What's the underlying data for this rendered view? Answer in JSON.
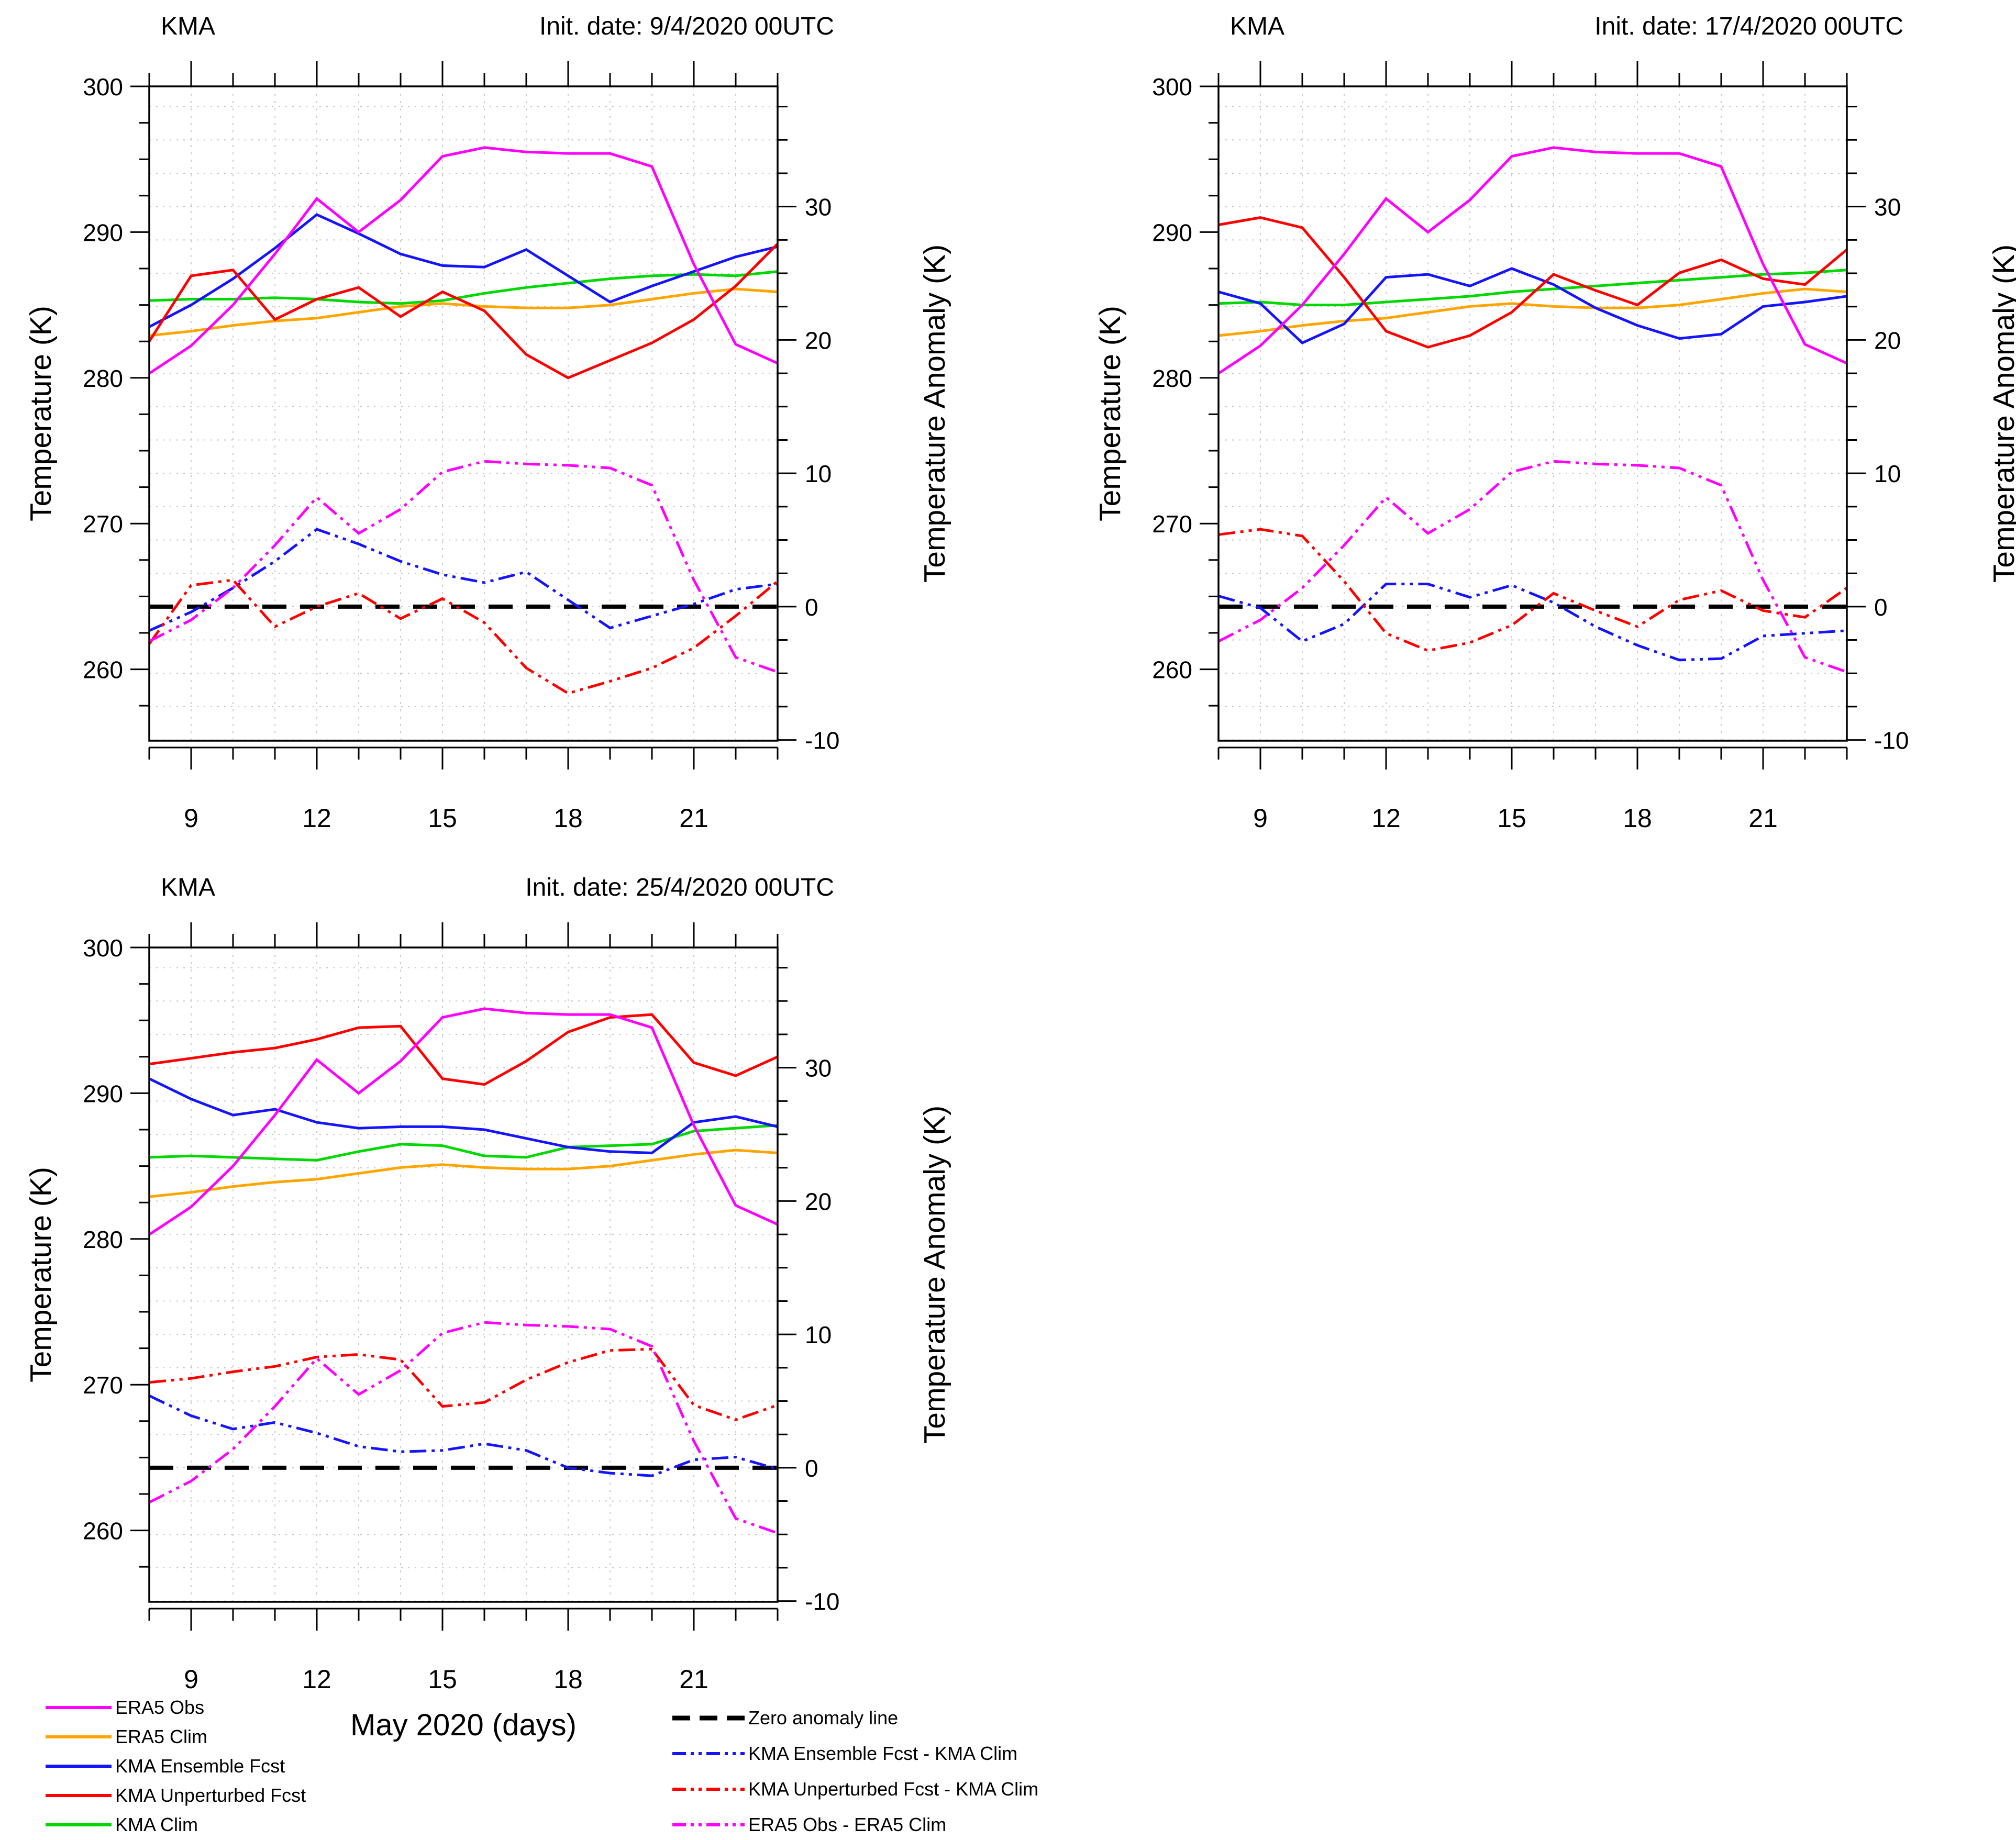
{
  "chart_data": [
    {
      "type": "line",
      "title": "KMA",
      "subtitle": "Init. date: 9/4/2020 00UTC",
      "xlabel": "",
      "ylabel_left": "Temperature (K)",
      "ylabel_right": "Temperature Anomaly (K)",
      "x_days": [
        8,
        9,
        10,
        11,
        12,
        13,
        14,
        15,
        16,
        17,
        18,
        19,
        20,
        21,
        22,
        23
      ],
      "xticks": [
        9,
        12,
        15,
        18,
        21
      ],
      "ylim_left": [
        255.1,
        300
      ],
      "yticks_left": [
        300,
        290,
        280,
        270,
        260
      ],
      "yticks_right": [
        30,
        20,
        10,
        0,
        -10
      ],
      "right_axis": {
        "zero_at_temp": 264.3,
        "kelvin_per_unit": 0.915
      },
      "grid": {
        "h_step_anomaly": 2.5,
        "v_step_days": 1,
        "grid_on": true
      },
      "series": [
        {
          "name": "ERA5 Clim",
          "axis": "left",
          "color": "#ffa500",
          "style": "solid",
          "values": [
            282.9,
            283.2,
            283.6,
            283.9,
            284.1,
            284.5,
            284.9,
            285.1,
            284.9,
            284.8,
            284.8,
            285.0,
            285.4,
            285.8,
            286.1,
            285.9
          ]
        },
        {
          "name": "KMA Clim",
          "axis": "left",
          "color": "#00d800",
          "style": "solid",
          "values": [
            285.3,
            285.4,
            285.4,
            285.5,
            285.4,
            285.2,
            285.1,
            285.3,
            285.8,
            286.2,
            286.5,
            286.8,
            287.0,
            287.1,
            287.0,
            287.3
          ]
        },
        {
          "name": "KMA Ensemble Fcst",
          "axis": "left",
          "color": "#1414ff",
          "style": "solid",
          "values": [
            283.5,
            285.0,
            286.8,
            288.9,
            291.2,
            289.9,
            288.5,
            287.7,
            287.6,
            288.8,
            287.0,
            285.2,
            286.3,
            287.3,
            288.3,
            289.0
          ]
        },
        {
          "name": "KMA Unperturbed Fcst",
          "axis": "left",
          "color": "#ff0000",
          "style": "solid",
          "values": [
            282.5,
            287.0,
            287.4,
            284.0,
            285.4,
            286.2,
            284.2,
            285.9,
            284.6,
            281.6,
            280.0,
            281.2,
            282.4,
            284.0,
            286.3,
            289.2
          ]
        },
        {
          "name": "ERA5 Obs",
          "axis": "left",
          "color": "#ff00ff",
          "style": "solid",
          "values": [
            280.3,
            282.2,
            285.0,
            288.5,
            292.3,
            290.0,
            292.2,
            295.2,
            295.8,
            295.5,
            295.4,
            295.4,
            294.5,
            287.8,
            282.3,
            281.0
          ]
        },
        {
          "name": "Zero anomaly line",
          "axis": "right",
          "color": "#000000",
          "style": "zero-dash",
          "values": [
            0,
            0,
            0,
            0,
            0,
            0,
            0,
            0,
            0,
            0,
            0,
            0,
            0,
            0,
            0,
            0
          ]
        },
        {
          "name": "KMA Ensemble Fcst - KMA Clim",
          "axis": "right",
          "color": "#1414ff",
          "style": "dash-dot-dot",
          "values": [
            -1.8,
            -0.4,
            1.4,
            3.4,
            5.8,
            4.7,
            3.4,
            2.4,
            1.8,
            2.6,
            0.5,
            -1.6,
            -0.7,
            0.2,
            1.3,
            1.7
          ]
        },
        {
          "name": "KMA Unperturbed Fcst - KMA Clim",
          "axis": "right",
          "color": "#ff0000",
          "style": "dash-dot-dot",
          "values": [
            -2.8,
            1.6,
            2.0,
            -1.5,
            0.0,
            1.0,
            -0.9,
            0.6,
            -1.2,
            -4.6,
            -6.5,
            -5.6,
            -4.6,
            -3.1,
            -0.7,
            1.9
          ]
        },
        {
          "name": "ERA5 Obs - ERA5 Clim",
          "axis": "right",
          "color": "#ff00ff",
          "style": "dash-dot-dot",
          "values": [
            -2.6,
            -1.0,
            1.4,
            4.6,
            8.2,
            5.5,
            7.3,
            10.1,
            10.9,
            10.7,
            10.6,
            10.4,
            9.1,
            2.0,
            -3.8,
            -4.9
          ]
        }
      ]
    },
    {
      "type": "line",
      "title": "KMA",
      "subtitle": "Init. date: 17/4/2020 00UTC",
      "xlabel": "",
      "ylabel_left": "Temperature (K)",
      "ylabel_right": "Temperature Anomaly (K)",
      "x_days": [
        8,
        9,
        10,
        11,
        12,
        13,
        14,
        15,
        16,
        17,
        18,
        19,
        20,
        21,
        22,
        23
      ],
      "xticks": [
        9,
        12,
        15,
        18,
        21
      ],
      "ylim_left": [
        255.1,
        300
      ],
      "yticks_left": [
        300,
        290,
        280,
        270,
        260
      ],
      "yticks_right": [
        30,
        20,
        10,
        0,
        -10
      ],
      "right_axis": {
        "zero_at_temp": 264.3,
        "kelvin_per_unit": 0.915
      },
      "grid": {
        "h_step_anomaly": 2.5,
        "v_step_days": 1,
        "grid_on": true
      },
      "series": [
        {
          "name": "ERA5 Clim",
          "axis": "left",
          "color": "#ffa500",
          "style": "solid",
          "values": [
            282.9,
            283.2,
            283.6,
            283.9,
            284.1,
            284.5,
            284.9,
            285.1,
            284.9,
            284.8,
            284.8,
            285.0,
            285.4,
            285.8,
            286.1,
            285.9
          ]
        },
        {
          "name": "KMA Clim",
          "axis": "left",
          "color": "#00d800",
          "style": "solid",
          "values": [
            285.1,
            285.2,
            285.0,
            285.0,
            285.2,
            285.4,
            285.6,
            285.9,
            286.1,
            286.3,
            286.5,
            286.7,
            286.9,
            287.1,
            287.2,
            287.4
          ]
        },
        {
          "name": "KMA Ensemble Fcst",
          "axis": "left",
          "color": "#1414ff",
          "style": "solid",
          "values": [
            285.9,
            285.1,
            282.4,
            283.7,
            286.9,
            287.1,
            286.3,
            287.5,
            286.4,
            284.8,
            283.6,
            282.7,
            283.0,
            284.9,
            285.2,
            285.6
          ]
        },
        {
          "name": "KMA Unperturbed Fcst",
          "axis": "left",
          "color": "#ff0000",
          "style": "solid",
          "values": [
            290.5,
            291.0,
            290.3,
            286.9,
            283.2,
            282.1,
            282.9,
            284.5,
            287.1,
            286.0,
            285.0,
            287.2,
            288.1,
            286.8,
            286.4,
            288.8
          ]
        },
        {
          "name": "ERA5 Obs",
          "axis": "left",
          "color": "#ff00ff",
          "style": "solid",
          "values": [
            280.3,
            282.2,
            285.0,
            288.5,
            292.3,
            290.0,
            292.2,
            295.2,
            295.8,
            295.5,
            295.4,
            295.4,
            294.5,
            287.8,
            282.3,
            281.0
          ]
        },
        {
          "name": "Zero anomaly line",
          "axis": "right",
          "color": "#000000",
          "style": "zero-dash",
          "values": [
            0,
            0,
            0,
            0,
            0,
            0,
            0,
            0,
            0,
            0,
            0,
            0,
            0,
            0,
            0,
            0
          ]
        },
        {
          "name": "KMA Ensemble Fcst - KMA Clim",
          "axis": "right",
          "color": "#1414ff",
          "style": "dash-dot-dot",
          "values": [
            0.8,
            -0.1,
            -2.6,
            -1.3,
            1.7,
            1.7,
            0.7,
            1.6,
            0.3,
            -1.5,
            -2.9,
            -4.0,
            -3.9,
            -2.2,
            -2.0,
            -1.8
          ]
        },
        {
          "name": "KMA Unperturbed Fcst - KMA Clim",
          "axis": "right",
          "color": "#ff0000",
          "style": "dash-dot-dot",
          "values": [
            5.4,
            5.8,
            5.3,
            1.9,
            -2.0,
            -3.3,
            -2.7,
            -1.4,
            1.0,
            -0.3,
            -1.5,
            0.5,
            1.2,
            -0.3,
            -0.8,
            1.4
          ]
        },
        {
          "name": "ERA5 Obs - ERA5 Clim",
          "axis": "right",
          "color": "#ff00ff",
          "style": "dash-dot-dot",
          "values": [
            -2.6,
            -1.0,
            1.4,
            4.6,
            8.2,
            5.5,
            7.3,
            10.1,
            10.9,
            10.7,
            10.6,
            10.4,
            9.1,
            2.0,
            -3.8,
            -4.9
          ]
        }
      ]
    },
    {
      "type": "line",
      "title": "KMA",
      "subtitle": "Init. date: 25/4/2020 00UTC",
      "xlabel": "May 2020 (days)",
      "ylabel_left": "Temperature (K)",
      "ylabel_right": "Temperature Anomaly (K)",
      "x_days": [
        8,
        9,
        10,
        11,
        12,
        13,
        14,
        15,
        16,
        17,
        18,
        19,
        20,
        21,
        22,
        23
      ],
      "xticks": [
        9,
        12,
        15,
        18,
        21
      ],
      "ylim_left": [
        255.1,
        300
      ],
      "yticks_left": [
        300,
        290,
        280,
        270,
        260
      ],
      "yticks_right": [
        30,
        20,
        10,
        0,
        -10
      ],
      "right_axis": {
        "zero_at_temp": 264.3,
        "kelvin_per_unit": 0.915
      },
      "grid": {
        "h_step_anomaly": 2.5,
        "v_step_days": 1,
        "grid_on": true
      },
      "series": [
        {
          "name": "ERA5 Clim",
          "axis": "left",
          "color": "#ffa500",
          "style": "solid",
          "values": [
            282.9,
            283.2,
            283.6,
            283.9,
            284.1,
            284.5,
            284.9,
            285.1,
            284.9,
            284.8,
            284.8,
            285.0,
            285.4,
            285.8,
            286.1,
            285.9
          ]
        },
        {
          "name": "KMA Clim",
          "axis": "left",
          "color": "#00d800",
          "style": "solid",
          "values": [
            285.6,
            285.7,
            285.6,
            285.5,
            285.4,
            286.0,
            286.5,
            286.4,
            285.7,
            285.6,
            286.3,
            286.4,
            286.5,
            287.4,
            287.6,
            287.8
          ]
        },
        {
          "name": "KMA Ensemble Fcst",
          "axis": "left",
          "color": "#1414ff",
          "style": "solid",
          "values": [
            291.0,
            289.6,
            288.5,
            288.9,
            288.0,
            287.6,
            287.7,
            287.7,
            287.5,
            286.9,
            286.3,
            286.0,
            285.9,
            288.0,
            288.4,
            287.7
          ]
        },
        {
          "name": "KMA Unperturbed Fcst",
          "axis": "left",
          "color": "#ff0000",
          "style": "solid",
          "values": [
            292.0,
            292.4,
            292.8,
            293.1,
            293.7,
            294.5,
            294.6,
            291.0,
            290.6,
            292.2,
            294.2,
            295.2,
            295.4,
            292.1,
            291.2,
            292.5
          ]
        },
        {
          "name": "ERA5 Obs",
          "axis": "left",
          "color": "#ff00ff",
          "style": "solid",
          "values": [
            280.3,
            282.2,
            285.0,
            288.5,
            292.3,
            290.0,
            292.2,
            295.2,
            295.8,
            295.5,
            295.4,
            295.4,
            294.5,
            287.8,
            282.3,
            281.0
          ]
        },
        {
          "name": "Zero anomaly line",
          "axis": "right",
          "color": "#000000",
          "style": "zero-dash",
          "values": [
            0,
            0,
            0,
            0,
            0,
            0,
            0,
            0,
            0,
            0,
            0,
            0,
            0,
            0,
            0,
            0
          ]
        },
        {
          "name": "KMA Ensemble Fcst - KMA Clim",
          "axis": "right",
          "color": "#1414ff",
          "style": "dash-dot-dot",
          "values": [
            5.4,
            3.9,
            2.9,
            3.4,
            2.6,
            1.6,
            1.2,
            1.3,
            1.8,
            1.3,
            0.0,
            -0.4,
            -0.6,
            0.6,
            0.8,
            -0.1
          ]
        },
        {
          "name": "KMA Unperturbed Fcst - KMA Clim",
          "axis": "right",
          "color": "#ff0000",
          "style": "dash-dot-dot",
          "values": [
            6.4,
            6.7,
            7.2,
            7.6,
            8.3,
            8.5,
            8.1,
            4.6,
            4.9,
            6.6,
            7.9,
            8.8,
            8.9,
            4.7,
            3.6,
            4.7
          ]
        },
        {
          "name": "ERA5 Obs - ERA5 Clim",
          "axis": "right",
          "color": "#ff00ff",
          "style": "dash-dot-dot",
          "values": [
            -2.6,
            -1.0,
            1.4,
            4.6,
            8.2,
            5.5,
            7.3,
            10.1,
            10.9,
            10.7,
            10.6,
            10.4,
            9.1,
            2.0,
            -3.8,
            -4.9
          ]
        }
      ]
    }
  ],
  "legend": {
    "left": [
      {
        "label": "ERA5 Obs",
        "color": "#ff00ff",
        "style": "solid"
      },
      {
        "label": "ERA5 Clim",
        "color": "#ffa500",
        "style": "solid"
      },
      {
        "label": "KMA Ensemble Fcst",
        "color": "#1414ff",
        "style": "solid"
      },
      {
        "label": "KMA Unperturbed Fcst",
        "color": "#ff0000",
        "style": "solid"
      },
      {
        "label": "KMA Clim",
        "color": "#00d800",
        "style": "solid"
      }
    ],
    "right": [
      {
        "label": "Zero anomaly line",
        "color": "#000000",
        "style": "zero-dash"
      },
      {
        "label": "KMA Ensemble Fcst - KMA Clim",
        "color": "#1414ff",
        "style": "dash-dot-dot"
      },
      {
        "label": "KMA Unperturbed Fcst - KMA Clim",
        "color": "#ff0000",
        "style": "dash-dot-dot"
      },
      {
        "label": "ERA5 Obs - ERA5 Clim",
        "color": "#ff00ff",
        "style": "dash-dot-dot"
      }
    ]
  }
}
